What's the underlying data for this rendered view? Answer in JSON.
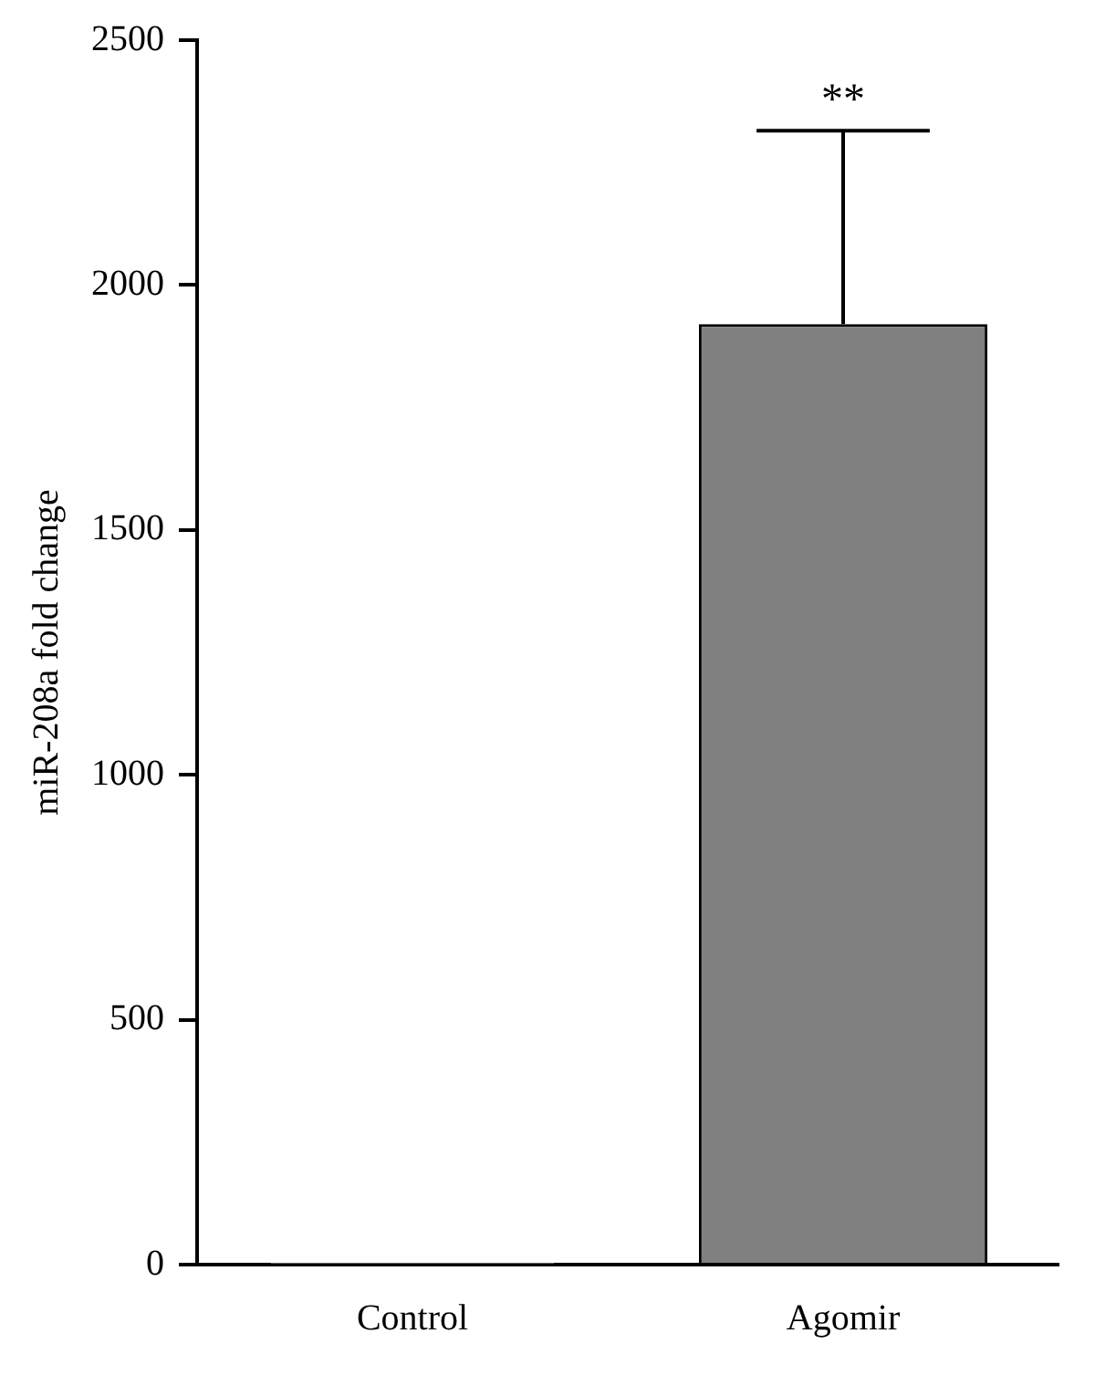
{
  "chart_data": {
    "type": "bar",
    "ylabel": "miR-208a fold change",
    "categories": [
      "Control",
      "Agomir"
    ],
    "values": [
      1,
      1920
    ],
    "errors": [
      null,
      395
    ],
    "color": "#808080",
    "ylim": [
      0,
      2500
    ],
    "yticks": [
      0,
      500,
      1000,
      1500,
      2000,
      2500
    ],
    "grid": false,
    "legend": false,
    "annotations": [
      "**"
    ]
  }
}
